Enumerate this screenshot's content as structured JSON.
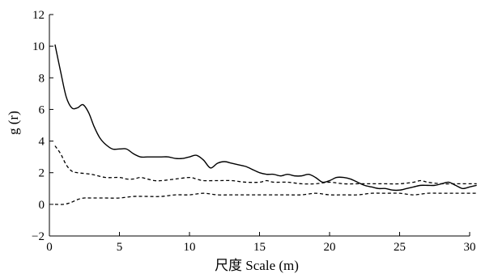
{
  "chart_data": {
    "type": "line",
    "xlabel": "尺度 Scale (m)",
    "ylabel": "g (r)",
    "xlim": [
      0,
      30
    ],
    "ylim": [
      -2,
      12
    ],
    "x_ticks": [
      0,
      5,
      10,
      15,
      20,
      25,
      30
    ],
    "y_ticks": [
      -2,
      0,
      2,
      4,
      6,
      8,
      10,
      12
    ],
    "x_tick_labels": [
      "0",
      "5",
      "10",
      "15",
      "20",
      "25",
      "30"
    ],
    "y_tick_labels": [
      "−2",
      "0",
      "2",
      "4",
      "6",
      "8",
      "10",
      "12"
    ],
    "grid": false,
    "legend": "none",
    "series": [
      {
        "style": "solid",
        "color": "#000000",
        "x": [
          0.4,
          0.8,
          1.2,
          1.6,
          2.0,
          2.4,
          2.8,
          3.2,
          3.6,
          4.0,
          4.5,
          5.0,
          5.5,
          6.0,
          6.5,
          7.0,
          7.5,
          8.0,
          8.5,
          9.0,
          9.5,
          10.0,
          10.5,
          11.0,
          11.5,
          12.0,
          12.5,
          13.0,
          13.5,
          14.0,
          14.5,
          15.0,
          15.5,
          16.0,
          16.5,
          17.0,
          17.5,
          18.0,
          18.5,
          19.0,
          19.5,
          20.0,
          20.5,
          21.0,
          21.5,
          22.0,
          22.5,
          23.0,
          23.5,
          24.0,
          24.5,
          25.0,
          25.5,
          26.0,
          26.5,
          27.0,
          27.5,
          28.0,
          28.5,
          29.0,
          29.5,
          30.0,
          30.5
        ],
        "y": [
          10.1,
          8.4,
          6.8,
          6.1,
          6.1,
          6.3,
          5.8,
          4.9,
          4.2,
          3.8,
          3.5,
          3.5,
          3.5,
          3.2,
          3.0,
          3.0,
          3.0,
          3.0,
          3.0,
          2.9,
          2.9,
          3.0,
          3.1,
          2.8,
          2.3,
          2.6,
          2.7,
          2.6,
          2.5,
          2.4,
          2.2,
          2.0,
          1.9,
          1.9,
          1.8,
          1.9,
          1.8,
          1.8,
          1.9,
          1.7,
          1.4,
          1.5,
          1.7,
          1.7,
          1.6,
          1.4,
          1.2,
          1.1,
          1.0,
          1.0,
          0.9,
          0.9,
          1.0,
          1.1,
          1.2,
          1.2,
          1.2,
          1.3,
          1.4,
          1.2,
          1.0,
          1.1,
          1.2
        ]
      },
      {
        "style": "dashed",
        "color": "#000000",
        "x": [
          0.4,
          0.8,
          1.2,
          1.6,
          2.0,
          3.0,
          4.0,
          5.0,
          5.5,
          6.0,
          6.5,
          7.0,
          7.5,
          8.0,
          9.0,
          10.0,
          10.5,
          11.0,
          12.0,
          13.0,
          14.0,
          15.0,
          15.5,
          16.0,
          17.0,
          18.0,
          19.0,
          20.0,
          21.0,
          22.0,
          23.0,
          24.0,
          25.0,
          26.0,
          26.5,
          27.0,
          28.0,
          29.0,
          30.0,
          30.5
        ],
        "y": [
          3.7,
          3.2,
          2.5,
          2.1,
          2.0,
          1.9,
          1.7,
          1.7,
          1.6,
          1.6,
          1.7,
          1.6,
          1.5,
          1.5,
          1.6,
          1.7,
          1.6,
          1.5,
          1.5,
          1.5,
          1.4,
          1.4,
          1.5,
          1.4,
          1.4,
          1.3,
          1.3,
          1.4,
          1.3,
          1.3,
          1.3,
          1.3,
          1.3,
          1.4,
          1.5,
          1.4,
          1.3,
          1.3,
          1.3,
          1.3
        ]
      },
      {
        "style": "dashed",
        "color": "#000000",
        "x": [
          0.4,
          1.0,
          1.5,
          2.0,
          2.5,
          3.0,
          4.0,
          5.0,
          6.0,
          7.0,
          8.0,
          9.0,
          10.0,
          11.0,
          12.0,
          13.0,
          14.0,
          15.0,
          16.0,
          17.0,
          18.0,
          19.0,
          20.0,
          21.0,
          22.0,
          23.0,
          24.0,
          25.0,
          26.0,
          27.0,
          28.0,
          29.0,
          30.0,
          30.5
        ],
        "y": [
          0.0,
          0.0,
          0.1,
          0.3,
          0.4,
          0.4,
          0.4,
          0.4,
          0.5,
          0.5,
          0.5,
          0.6,
          0.6,
          0.7,
          0.6,
          0.6,
          0.6,
          0.6,
          0.6,
          0.6,
          0.6,
          0.7,
          0.6,
          0.6,
          0.6,
          0.7,
          0.7,
          0.7,
          0.6,
          0.7,
          0.7,
          0.7,
          0.7,
          0.7
        ]
      }
    ]
  }
}
